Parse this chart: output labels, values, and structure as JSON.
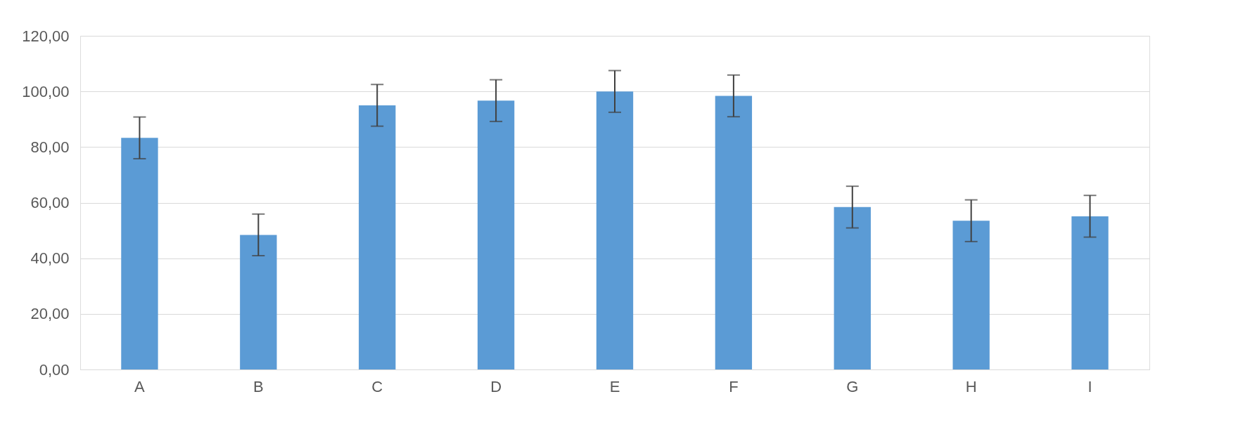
{
  "chart_data": {
    "type": "bar",
    "categories": [
      "A",
      "B",
      "C",
      "D",
      "E",
      "F",
      "G",
      "H",
      "I"
    ],
    "values": [
      83.3,
      48.4,
      95.0,
      96.7,
      100.0,
      98.4,
      58.4,
      53.5,
      55.1
    ],
    "errors": [
      7.5,
      7.5,
      7.5,
      7.5,
      7.5,
      7.5,
      7.5,
      7.5,
      7.5
    ],
    "color": "#5b9bd5",
    "ylim": [
      0,
      120
    ],
    "yticks": [
      {
        "value": 0,
        "label": "0,00"
      },
      {
        "value": 20,
        "label": "20,00"
      },
      {
        "value": 40,
        "label": "40,00"
      },
      {
        "value": 60,
        "label": "60,00"
      },
      {
        "value": 80,
        "label": "80,00"
      },
      {
        "value": 100,
        "label": "100,00"
      },
      {
        "value": 120,
        "label": "120,00"
      }
    ],
    "grid": "y"
  }
}
